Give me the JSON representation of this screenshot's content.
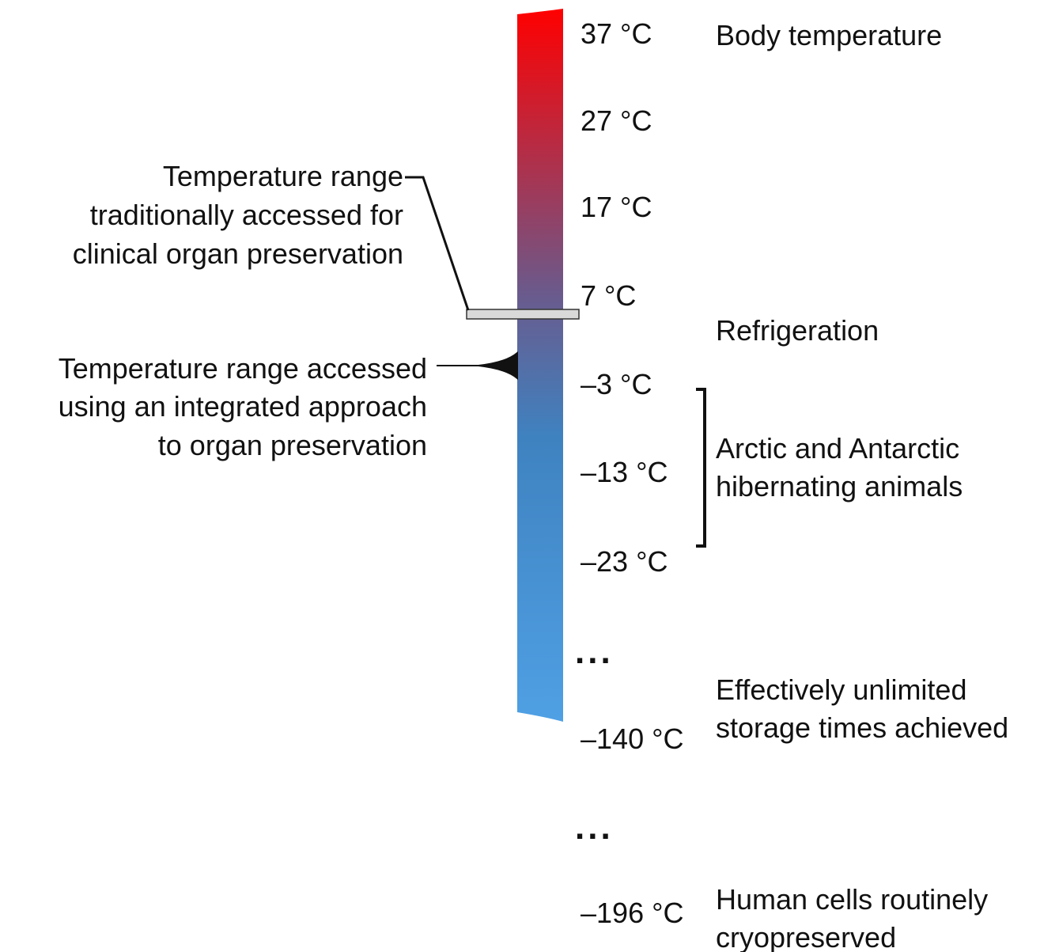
{
  "colors": {
    "scale_top": "#ff0000",
    "scale_mid": "#6a5a8c",
    "scale_cold": "#3f82c0",
    "scale_bottom": "#4fa0e4",
    "range_band": "#d9d9d9",
    "ink": "#111111"
  },
  "ticks": [
    "37 °C",
    "27 °C",
    "17 °C",
    "7 °C",
    "–3 °C",
    "–13 °C",
    "–23 °C",
    "–140 °C",
    "–196 °C"
  ],
  "ellipses": [
    "...",
    "..."
  ],
  "right_labels": {
    "body": [
      "Body temperature"
    ],
    "refrigeration": [
      "Refrigeration"
    ],
    "hibernating": [
      "Arctic and Antarctic",
      "hibernating animals"
    ],
    "unlimited": [
      "Effectively unlimited",
      "storage times achieved"
    ],
    "cryo": [
      "Human cells routinely",
      "cryopreserved"
    ]
  },
  "left_labels": {
    "traditional": [
      "Temperature range",
      "traditionally accessed for",
      "clinical organ preservation"
    ],
    "integrated": [
      "Temperature range accessed",
      "using an integrated approach",
      "to organ preservation"
    ]
  }
}
